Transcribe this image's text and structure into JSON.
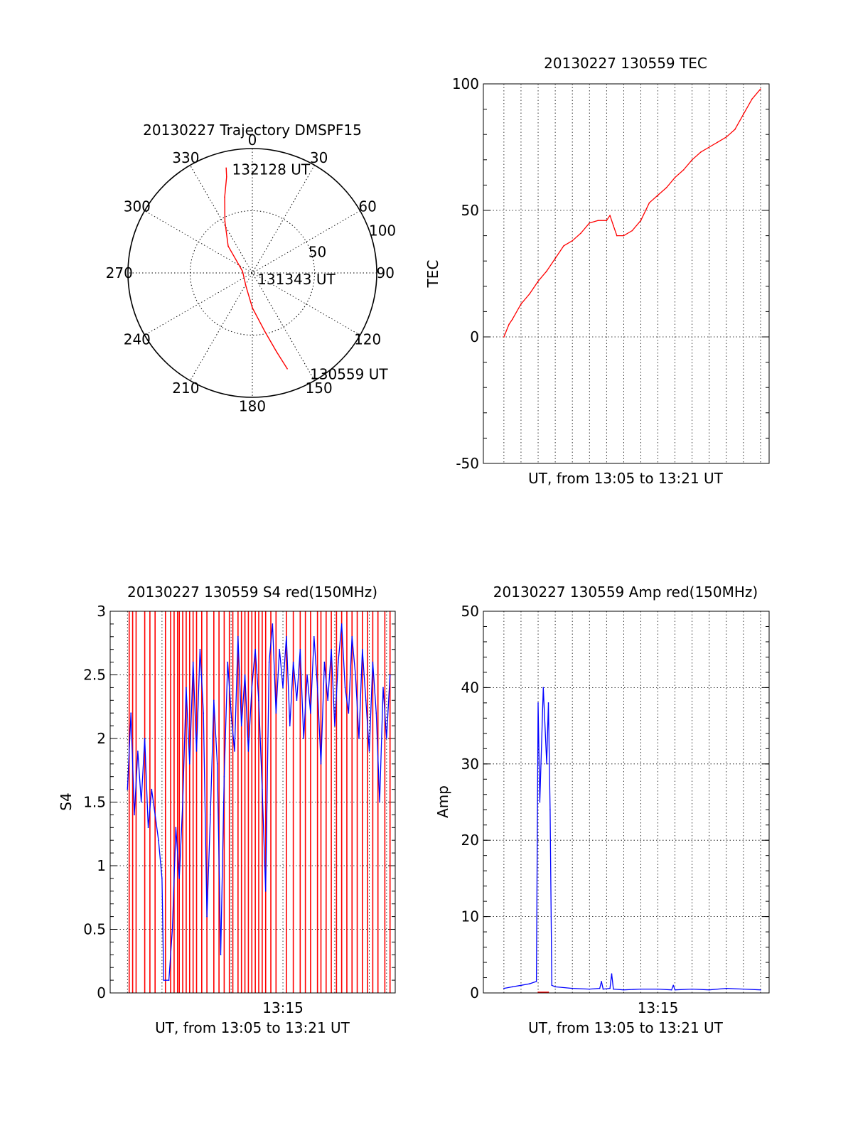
{
  "colors": {
    "red": "#ff0000",
    "blue": "#0000ff",
    "axis": "#000000"
  },
  "chart_data": [
    {
      "id": "trajectory",
      "type": "polar",
      "title": "20130227 Trajectory DMSPF15",
      "angle_labels": [
        "0",
        "30",
        "60",
        "90",
        "120",
        "150",
        "180",
        "210",
        "240",
        "270",
        "300",
        "330"
      ],
      "angles_deg": [
        0,
        30,
        60,
        90,
        120,
        150,
        180,
        210,
        240,
        270,
        300,
        330
      ],
      "radius_max": 100,
      "radius_rings": [
        50,
        100
      ],
      "radius_labels": [
        "50",
        "100"
      ],
      "track_color": "#ff0000",
      "track": [
        {
          "az": 346,
          "r": 87
        },
        {
          "az": 345,
          "r": 80
        },
        {
          "az": 340,
          "r": 65
        },
        {
          "az": 332,
          "r": 47
        },
        {
          "az": 318,
          "r": 29
        },
        {
          "az": 280,
          "r": 8
        },
        {
          "az": 205,
          "r": 12
        },
        {
          "az": 180,
          "r": 28
        },
        {
          "az": 168,
          "r": 48
        },
        {
          "az": 163,
          "r": 66
        },
        {
          "az": 160,
          "r": 82
        }
      ],
      "annotations": [
        {
          "text": "132128 UT",
          "az": 352,
          "r": 84
        },
        {
          "text": "131343 UT",
          "az": 120,
          "r": 10
        },
        {
          "text": "130559 UT",
          "az": 148,
          "r": 96
        }
      ]
    },
    {
      "id": "tec",
      "type": "line",
      "title": "20130227 130559 TEC",
      "xlabel": "UT, from 13:05 to 13:21 UT",
      "ylabel": "TEC",
      "xlim": [
        -1.2,
        15.5
      ],
      "ylim": [
        -50,
        100
      ],
      "yticks": [
        -50,
        0,
        50,
        100
      ],
      "x_gridlines": [
        0,
        1,
        2,
        3,
        4,
        5,
        6,
        7,
        8,
        9,
        10,
        11,
        12,
        13,
        14,
        15
      ],
      "series": [
        {
          "color": "#ff0000",
          "x": [
            0,
            0.3,
            0.5,
            1,
            1.5,
            2,
            2.5,
            3,
            3.5,
            4,
            4.5,
            5,
            5.5,
            6,
            6.2,
            6.4,
            6.6,
            7,
            7.5,
            8,
            8.5,
            9,
            9.5,
            10,
            10.5,
            11,
            11.5,
            12,
            12.5,
            13,
            13.5,
            14,
            14.5,
            15
          ],
          "y": [
            0,
            5,
            7,
            13,
            17,
            22,
            26,
            31,
            36,
            38,
            41,
            45,
            46,
            46,
            48,
            44,
            40,
            40,
            42,
            46,
            53,
            56,
            59,
            63,
            66,
            70,
            73,
            75,
            77,
            79,
            82,
            88,
            94,
            98
          ]
        }
      ]
    },
    {
      "id": "s4",
      "type": "line",
      "title": "20130227 130559 S4 red(150MHz)",
      "xlabel": "UT, from 13:05 to 13:21 UT",
      "ylabel": "S4",
      "xlim": [
        -1.0,
        15.5
      ],
      "ylim": [
        0,
        3
      ],
      "yticks": [
        0,
        0.5,
        1,
        1.5,
        2,
        2.5,
        3
      ],
      "ytick_labels": [
        "0",
        "0.5",
        "1",
        "1.5",
        "2",
        "2.5",
        "3"
      ],
      "xtick_labels": [
        {
          "x": 9,
          "label": "13:15"
        }
      ],
      "x_gridlines": [
        0,
        1,
        2,
        3,
        4,
        5,
        6,
        7,
        8,
        9,
        10,
        11,
        12,
        13,
        14,
        15
      ],
      "series": [
        {
          "color": "#ff0000",
          "spikes_x": [
            0.1,
            0.3,
            0.5,
            1.0,
            1.3,
            1.6,
            2.2,
            2.5,
            2.7,
            2.9,
            3.0,
            3.2,
            3.4,
            3.6,
            3.8,
            4.0,
            4.3,
            4.6,
            5.0,
            5.3,
            5.6,
            5.9,
            6.1,
            6.4,
            6.6,
            6.8,
            7.0,
            7.2,
            7.4,
            7.6,
            7.8,
            8.0,
            8.3,
            8.6,
            9.2,
            9.6,
            10.0,
            10.3,
            10.6,
            11.0,
            11.2,
            11.5,
            11.8,
            12.1,
            12.4,
            12.7,
            13.0,
            13.3,
            13.6,
            13.9,
            14.2,
            14.5,
            14.9,
            15.2
          ],
          "spike_low": 0,
          "spike_high": 3
        },
        {
          "color": "#0000ff",
          "x": [
            0,
            0.2,
            0.4,
            0.6,
            0.8,
            1.0,
            1.2,
            1.4,
            1.6,
            1.8,
            2.0,
            2.1,
            2.2,
            2.4,
            2.6,
            2.8,
            3.0,
            3.2,
            3.4,
            3.6,
            3.8,
            4.0,
            4.2,
            4.4,
            4.6,
            4.8,
            5.0,
            5.2,
            5.4,
            5.6,
            5.8,
            6.0,
            6.2,
            6.4,
            6.6,
            6.8,
            7.0,
            7.2,
            7.4,
            7.6,
            7.8,
            8.0,
            8.2,
            8.4,
            8.6,
            8.8,
            9.0,
            9.2,
            9.4,
            9.6,
            9.8,
            10.0,
            10.2,
            10.4,
            10.6,
            10.8,
            11.0,
            11.2,
            11.4,
            11.6,
            11.8,
            12.0,
            12.2,
            12.4,
            12.6,
            12.8,
            13.0,
            13.2,
            13.4,
            13.6,
            13.8,
            14.0,
            14.2,
            14.4,
            14.6,
            14.8,
            15.0,
            15.2
          ],
          "y": [
            1.6,
            2.2,
            1.4,
            1.9,
            1.5,
            2.0,
            1.3,
            1.6,
            1.4,
            1.2,
            0.9,
            0.1,
            0.1,
            0.1,
            0.5,
            1.3,
            0.9,
            1.5,
            2.4,
            1.8,
            2.6,
            1.9,
            2.7,
            2.2,
            0.6,
            1.4,
            2.3,
            1.8,
            0.3,
            1.7,
            2.6,
            2.2,
            1.9,
            2.8,
            2.1,
            2.5,
            1.9,
            2.4,
            2.7,
            2.3,
            1.6,
            0.8,
            2.6,
            2.9,
            2.2,
            2.7,
            2.4,
            2.8,
            2.1,
            2.6,
            2.3,
            2.7,
            2.0,
            2.5,
            2.2,
            2.8,
            2.4,
            1.8,
            2.6,
            2.3,
            2.7,
            2.1,
            2.6,
            2.9,
            2.4,
            2.2,
            2.8,
            2.5,
            2.0,
            2.7,
            2.3,
            1.9,
            2.6,
            2.2,
            1.5,
            2.4,
            2.0,
            2.5
          ]
        }
      ]
    },
    {
      "id": "amp",
      "type": "line",
      "title": "20130227 130559 Amp red(150MHz)",
      "xlabel": "UT, from 13:05 to 13:21 UT",
      "ylabel": "Amp",
      "xlim": [
        -1.2,
        15.5
      ],
      "ylim": [
        0,
        50
      ],
      "yticks": [
        0,
        10,
        20,
        30,
        40,
        50
      ],
      "xtick_labels": [
        {
          "x": 9,
          "label": "13:15"
        }
      ],
      "x_gridlines": [
        0,
        1,
        2,
        3,
        4,
        5,
        6,
        7,
        8,
        9,
        10,
        11,
        12,
        13,
        14,
        15
      ],
      "series": [
        {
          "color": "#0000ff",
          "x": [
            0,
            0.5,
            1.0,
            1.5,
            1.9,
            2.0,
            2.1,
            2.3,
            2.5,
            2.6,
            2.7,
            2.8,
            3.0,
            4.0,
            5.0,
            5.6,
            5.7,
            5.8,
            6.2,
            6.3,
            6.4,
            7.0,
            8.0,
            9.0,
            9.8,
            9.9,
            10.0,
            11.0,
            12.0,
            13.0,
            14.0,
            15.0
          ],
          "y": [
            0.6,
            0.8,
            1.0,
            1.2,
            1.5,
            38,
            25,
            40,
            30,
            38,
            24,
            1.0,
            0.8,
            0.6,
            0.5,
            0.6,
            1.5,
            0.5,
            0.6,
            2.5,
            0.5,
            0.4,
            0.5,
            0.5,
            0.4,
            1.0,
            0.4,
            0.5,
            0.4,
            0.6,
            0.5,
            0.4
          ]
        },
        {
          "color": "#ff0000",
          "x": [
            2.0,
            2.6
          ],
          "y": [
            0.1,
            0.1
          ]
        }
      ]
    }
  ]
}
